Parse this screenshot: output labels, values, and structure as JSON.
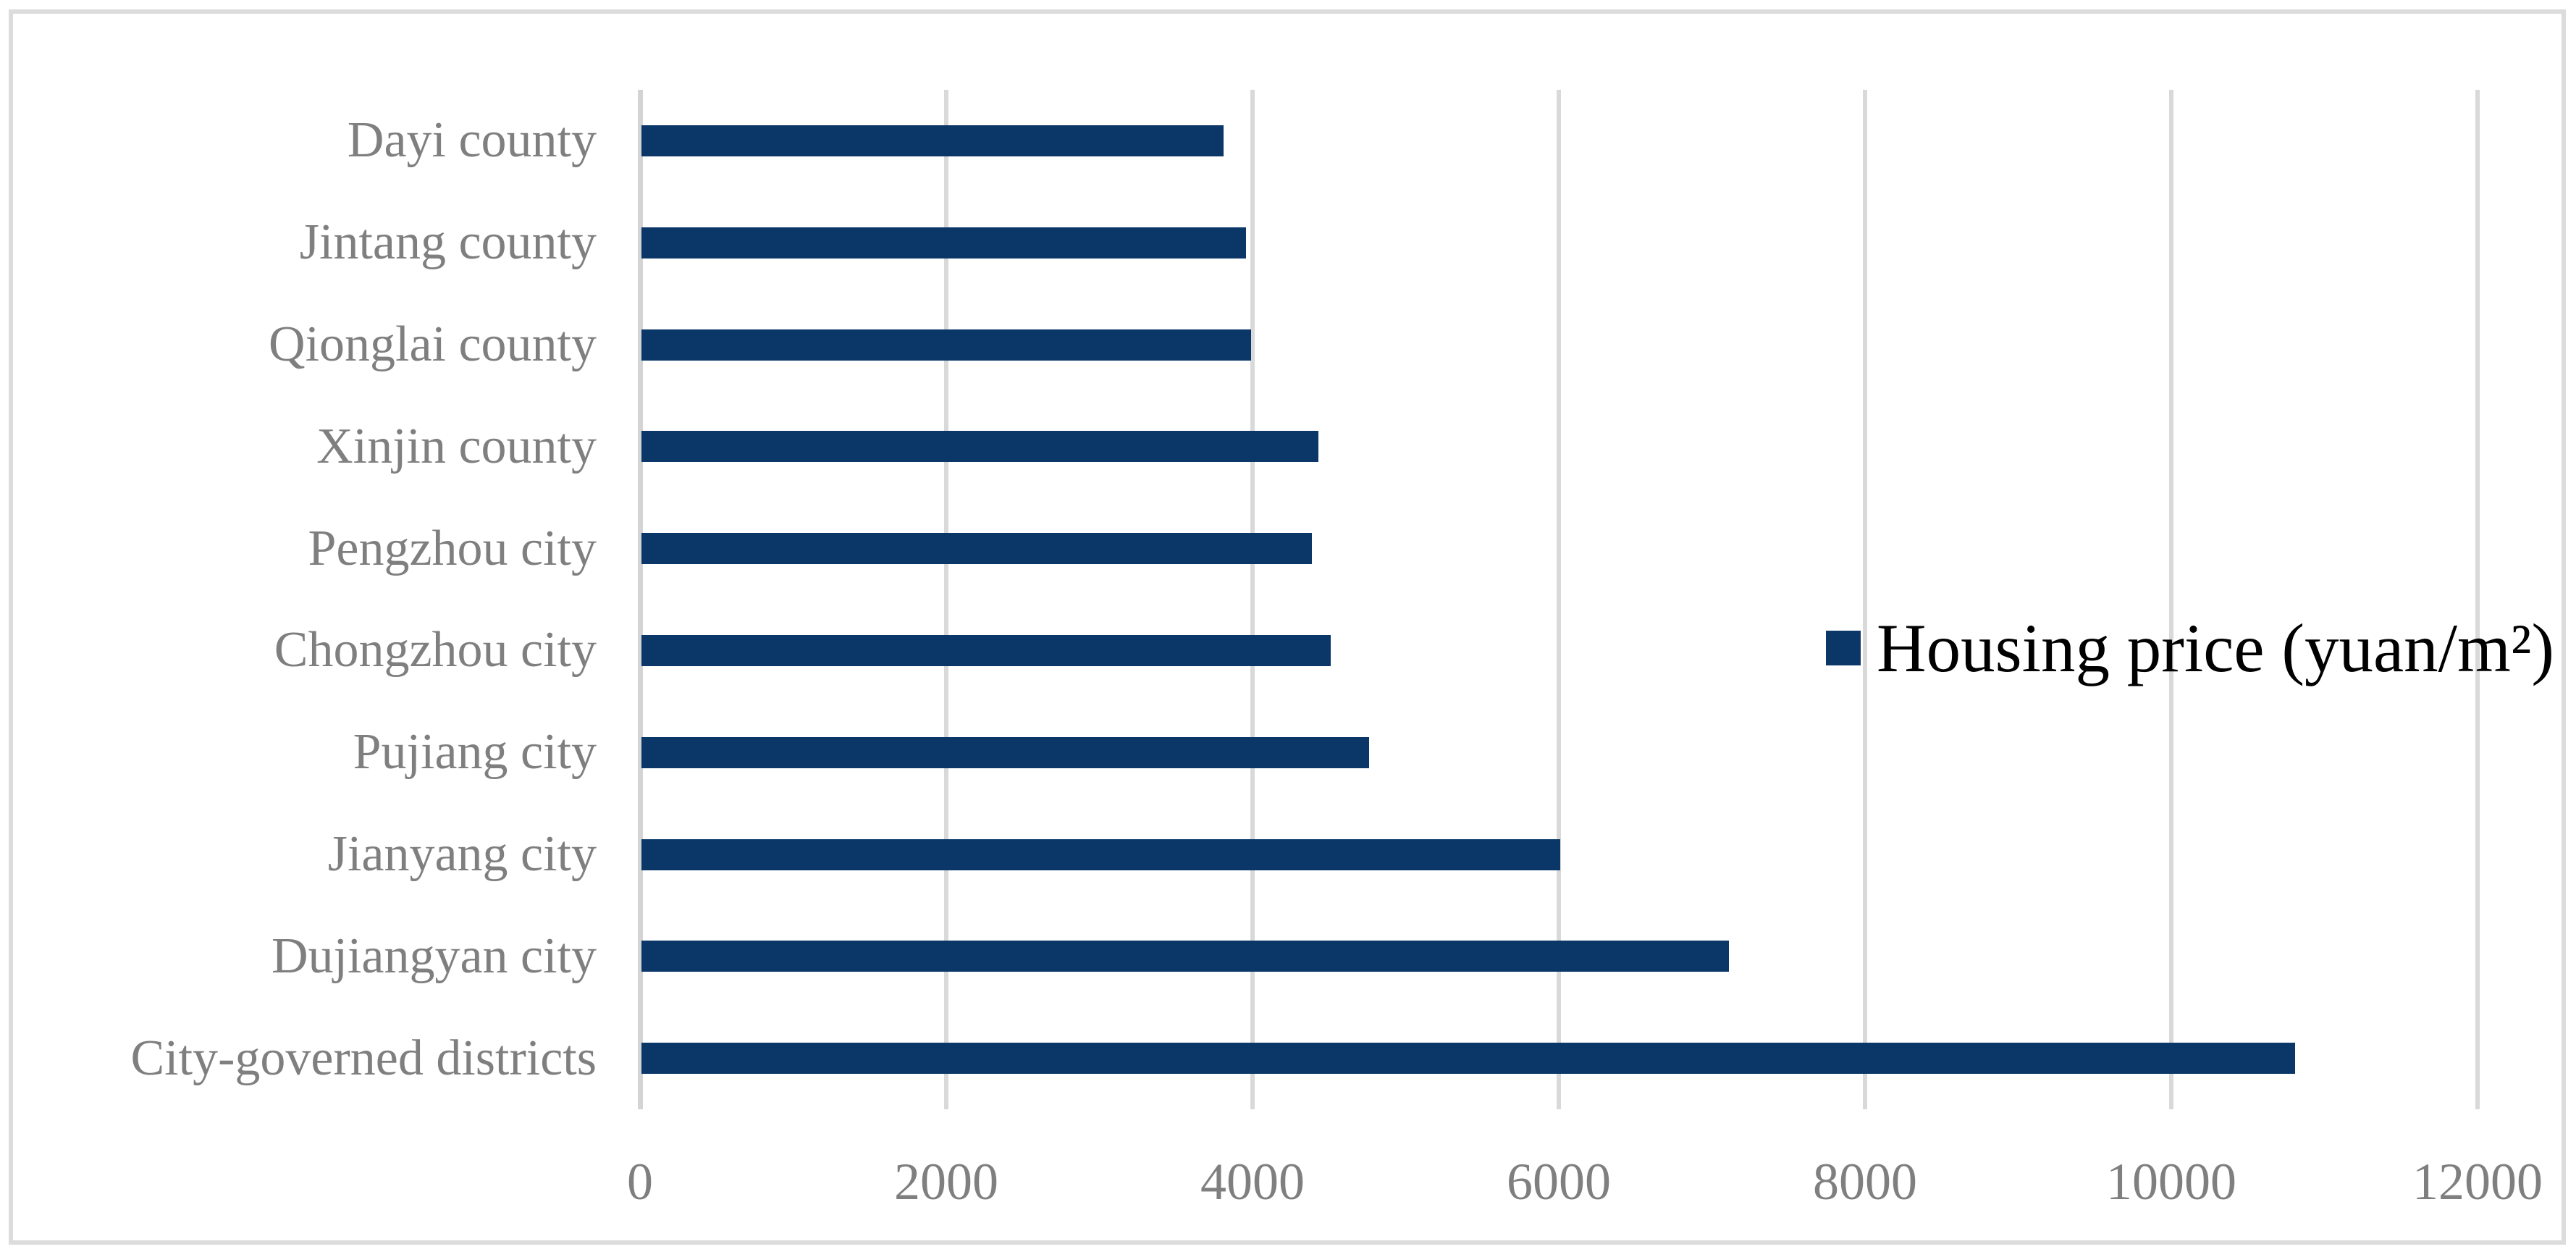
{
  "chart_data": {
    "type": "bar",
    "orientation": "horizontal",
    "title": "",
    "xlabel": "",
    "ylabel": "",
    "categories": [
      "Dayi county",
      "Jintang county",
      "Qionglai county",
      "Xinjin county",
      "Pengzhou city",
      "Chongzhou city",
      "Pujiang city",
      "Jianyang city",
      "Dujiangyan city",
      "City-governed districts"
    ],
    "values": [
      3800,
      3950,
      3980,
      4420,
      4380,
      4500,
      4750,
      6000,
      7100,
      10800
    ],
    "xlim": [
      0,
      12000
    ],
    "x_ticks": [
      0,
      2000,
      4000,
      6000,
      8000,
      10000,
      12000
    ],
    "grid": true,
    "legend": {
      "label": "Housing price (yuan/m²)",
      "position": "middle-right"
    },
    "colors": {
      "bar": "#0a3768",
      "gridline": "#d9d9d9",
      "axis_line": "#d4d4d4",
      "frame_border": "#dcdcdc",
      "tick_text": "#7f7f7f",
      "category_text": "#7f7f7f",
      "legend_text": "#000000",
      "background": "#ffffff"
    }
  }
}
